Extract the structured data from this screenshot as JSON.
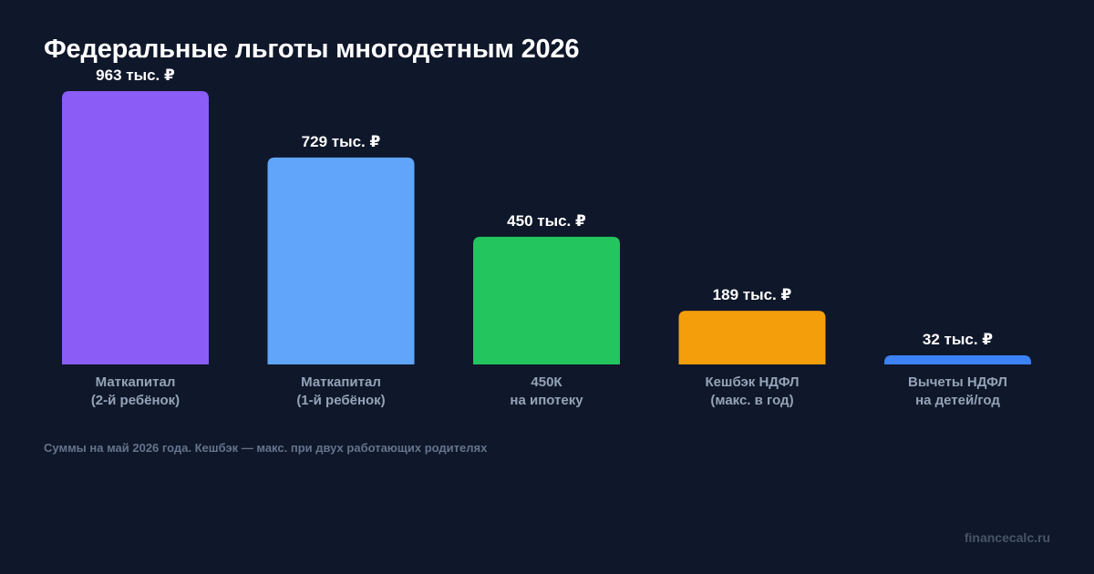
{
  "chart_data": {
    "type": "bar",
    "title": "Федеральные льготы многодетным 2026",
    "categories": [
      [
        "Маткапитал",
        "(2-й ребёнок)"
      ],
      [
        "Маткапитал",
        "(1-й ребёнок)"
      ],
      [
        "450К",
        "на ипотеку"
      ],
      [
        "Кешбэк НДФЛ",
        "(макс. в год)"
      ],
      [
        "Вычеты НДФЛ",
        "на детей/год"
      ]
    ],
    "values": [
      963,
      729,
      450,
      189,
      32
    ],
    "value_labels": [
      "963 тыс. ₽",
      "729 тыс. ₽",
      "450 тыс. ₽",
      "189 тыс. ₽",
      "32 тыс. ₽"
    ],
    "unit": "тыс. ₽",
    "colors": [
      "#8b5cf6",
      "#60a5fa",
      "#22c55e",
      "#f59e0b",
      "#3b82f6"
    ],
    "ylim": [
      0,
      963
    ],
    "grid": false,
    "legend": "none"
  },
  "footnote": "Суммы на май 2026 года. Кешбэк — макс. при двух работающих родителях",
  "watermark": "financecalc.ru"
}
